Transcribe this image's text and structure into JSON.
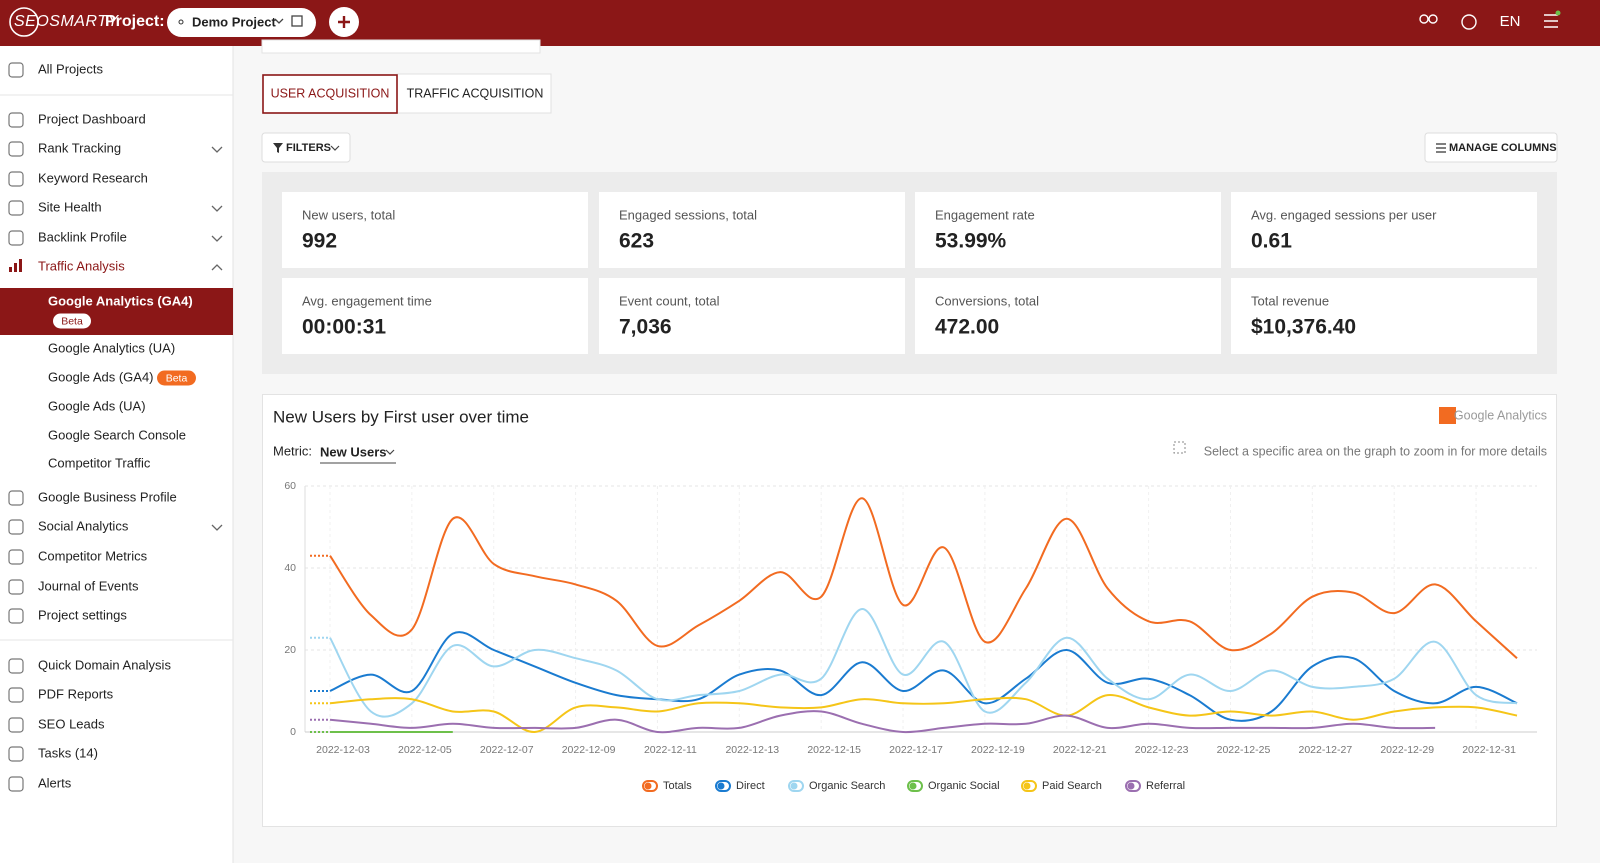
{
  "header": {
    "logo": "SEOSMARTY",
    "project_label": "Project:",
    "project": "Demo Project",
    "language": "EN"
  },
  "sidebar": {
    "top": [
      "All Projects"
    ],
    "main": [
      "Project Dashboard",
      "Rank Tracking",
      "Keyword Research",
      "Site Health",
      "Backlink Profile",
      "Traffic Analysis"
    ],
    "traffic_sub": [
      {
        "label": "Google Analytics (GA4)",
        "badge": "Beta"
      },
      {
        "label": "Google Analytics (UA)"
      },
      {
        "label": "Google Ads (GA4)",
        "badge": "Beta"
      },
      {
        "label": "Google Ads (UA)"
      },
      {
        "label": "Google Search Console"
      },
      {
        "label": "Competitor Traffic"
      }
    ],
    "more": [
      "Google Business Profile",
      "Social Analytics",
      "Competitor Metrics",
      "Journal of Events",
      "Project settings"
    ],
    "tools": [
      "Quick Domain Analysis",
      "PDF Reports",
      "SEO Leads",
      "Tasks (14)",
      "Alerts"
    ]
  },
  "tabs": [
    "USER ACQUISITION",
    "TRAFFIC ACQUISITION"
  ],
  "filters": "FILTERS",
  "manage_columns": "MANAGE COLUMNS",
  "metrics": [
    {
      "label": "New users, total",
      "value": 992
    },
    {
      "label": "Engaged sessions, total",
      "value": 623
    },
    {
      "label": "Engagement rate",
      "value": "53.99%"
    },
    {
      "label": "Avg. engaged sessions per user",
      "value": 0.61
    },
    {
      "label": "Avg. engagement time",
      "value": "00:00:31"
    },
    {
      "label": "Event count, total",
      "value": "7,036"
    },
    {
      "label": "Conversions, total",
      "value": "472.00"
    },
    {
      "label": "Total revenue",
      "value": "$10,376.40"
    }
  ],
  "chart_panel": {
    "metric_label": "Metric:",
    "metric": "New Users",
    "hint": "Select a specific area on the graph to zoom in for more details",
    "brand": "Google Analytics"
  },
  "chart_data": {
    "type": "line",
    "title": "New Users by First user over time",
    "categories": [
      "2022-12-03",
      null,
      "2022-12-05",
      null,
      "2022-12-07",
      null,
      "2022-12-09",
      null,
      "2022-12-11",
      null,
      "2022-12-13",
      null,
      "2022-12-15",
      null,
      "2022-12-17",
      null,
      "2022-12-19",
      null,
      "2022-12-21",
      null,
      "2022-12-23",
      null,
      "2022-12-25",
      null,
      "2022-12-27",
      null,
      "2022-12-29",
      null,
      "2022-12-31",
      null
    ],
    "series": [
      {
        "name": "Totals",
        "color": "#f26b21",
        "values": [
          43,
          28.5,
          25,
          52,
          41,
          38,
          36,
          32,
          21,
          26,
          32,
          39,
          33,
          57,
          31,
          45,
          22,
          35,
          52,
          35,
          27,
          27,
          20,
          24,
          33,
          34,
          29,
          36,
          27,
          18
        ]
      },
      {
        "name": "Direct",
        "color": "#1a7bd0",
        "values": [
          10,
          14,
          10,
          24,
          20,
          16,
          12,
          9,
          8,
          8,
          14,
          15,
          9,
          17,
          10,
          15,
          7,
          13,
          20,
          12,
          13,
          9,
          3,
          5,
          16,
          18,
          10,
          7,
          11,
          7
        ]
      },
      {
        "name": "Organic Search",
        "color": "#9fd6f0",
        "values": [
          23,
          5,
          7,
          21,
          16,
          20,
          18,
          15,
          8,
          9,
          10,
          14,
          13,
          30,
          14,
          22,
          5,
          12,
          23,
          13,
          8,
          14,
          10,
          15,
          11,
          11,
          13,
          22,
          9,
          7
        ]
      },
      {
        "name": "Organic Social",
        "color": "#6dc04b",
        "values": [
          0,
          0,
          0,
          0,
          null,
          null,
          null,
          null,
          null,
          null,
          null,
          null,
          null,
          null,
          null,
          null,
          null,
          null,
          null,
          null,
          null,
          null,
          null,
          null,
          null,
          null,
          null,
          null,
          null,
          null
        ]
      },
      {
        "name": "Paid Search",
        "color": "#f5c518",
        "values": [
          7,
          8,
          8,
          5,
          5,
          0,
          6,
          6,
          5,
          7,
          7,
          6,
          6,
          8,
          7,
          7,
          8,
          8,
          4,
          9,
          6,
          4,
          5,
          4,
          5,
          3,
          5,
          6,
          6,
          4
        ]
      },
      {
        "name": "Referral",
        "color": "#9b6fb0",
        "values": [
          3,
          2,
          1,
          2,
          1,
          1,
          1,
          3,
          0,
          1,
          1,
          4,
          5,
          2,
          0,
          1,
          2,
          2,
          4,
          1,
          2,
          1,
          1,
          1,
          1,
          2,
          1,
          1,
          null,
          null
        ]
      }
    ],
    "ylim": [
      0,
      60
    ],
    "yticks": [
      0,
      20,
      40,
      60
    ],
    "grid": true,
    "legend": "bottom"
  }
}
